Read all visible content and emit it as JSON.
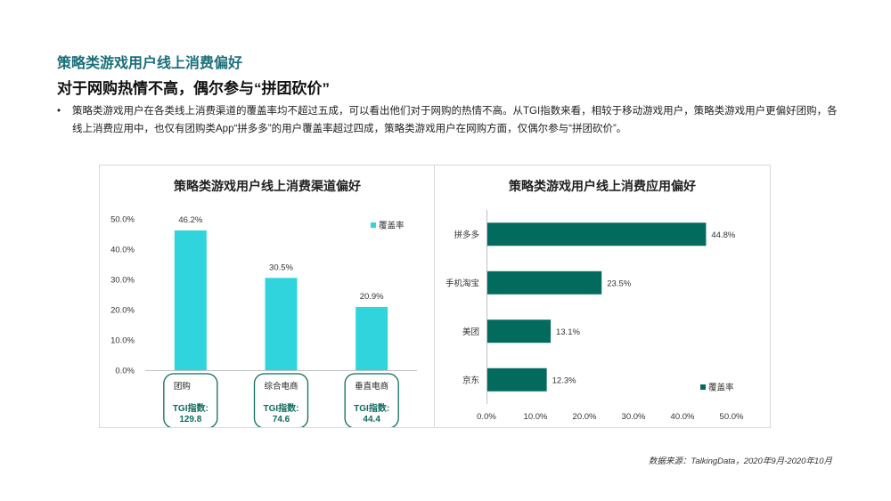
{
  "header": {
    "section_title": "策略类游戏用户线上消费偏好",
    "headline": "对于网购热情不高，偶尔参与“拼团砍价”",
    "bullet_symbol": "•",
    "bullet_text": "策略类游戏用户在各类线上消费渠道的覆盖率均不超过五成，可以看出他们对于网购的热情不高。从TGI指数来看，相较于移动游戏用户，策略类游戏用户更偏好团购，各线上消费应用中，也仅有团购类App“拼多多”的用户覆盖率超过四成，策略类游戏用户在网购方面，仅偶尔参与“拼团砍价”。"
  },
  "source": "数据来源：TalkingData，2020年9月-2020年10月",
  "colors": {
    "bar_left": "#2fd4dd",
    "bar_right": "#036b5e",
    "title_accent": "#1b6f7a",
    "tgi_text": "#0e6b5e"
  },
  "chart_data": [
    {
      "type": "bar",
      "title": "策略类游戏用户线上消费渠道偏好",
      "categories": [
        "团购",
        "综合电商",
        "垂直电商"
      ],
      "series": [
        {
          "name": "覆盖率",
          "values": [
            46.2,
            30.5,
            20.9
          ]
        }
      ],
      "data_labels": [
        "46.2%",
        "30.5%",
        "20.9%"
      ],
      "tgi": {
        "label": "TGI指数:",
        "values": [
          "129.8",
          "74.6",
          "44.4"
        ]
      },
      "ylim": [
        0,
        50
      ],
      "yticks": [
        "0.0%",
        "10.0%",
        "20.0%",
        "30.0%",
        "40.0%",
        "50.0%"
      ],
      "legend_position": "top-right",
      "grid": false
    },
    {
      "type": "bar",
      "orientation": "horizontal",
      "title": "策略类游戏用户线上消费应用偏好",
      "categories": [
        "拼多多",
        "手机淘宝",
        "美团",
        "京东"
      ],
      "series": [
        {
          "name": "覆盖率",
          "values": [
            44.8,
            23.5,
            13.1,
            12.3
          ]
        }
      ],
      "data_labels": [
        "44.8%",
        "23.5%",
        "13.1%",
        "12.3%"
      ],
      "xlim": [
        0,
        50
      ],
      "xticks": [
        "0.0%",
        "10.0%",
        "20.0%",
        "30.0%",
        "40.0%",
        "50.0%"
      ],
      "legend_position": "bottom-right",
      "grid": false
    }
  ]
}
